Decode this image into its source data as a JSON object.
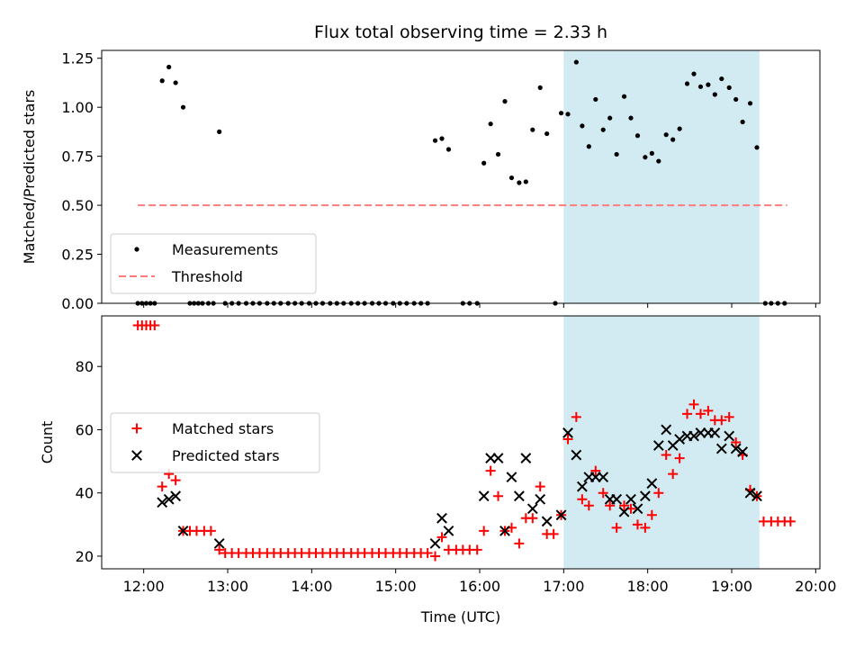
{
  "chart_data": [
    {
      "type": "scatter",
      "title": "Flux total observing time = 2.33 h",
      "ylabel": "Matched/Predicted stars",
      "xlabel": "",
      "xlim": [
        11.5,
        20.05
      ],
      "ylim": [
        0,
        1.29
      ],
      "yticks": [
        0.0,
        0.25,
        0.5,
        0.75,
        1.0,
        1.25
      ],
      "ytick_labels": [
        "0.00",
        "0.25",
        "0.50",
        "0.75",
        "1.00",
        "1.25"
      ],
      "shaded_interval": [
        17.0,
        19.33
      ],
      "shaded_color": "#add8e6",
      "legend_position": "lower-left",
      "series": [
        {
          "name": "Measurements",
          "marker": "dot",
          "color": "#000000",
          "points": [
            [
              11.93,
              0
            ],
            [
              11.98,
              0
            ],
            [
              12.03,
              0
            ],
            [
              12.08,
              0
            ],
            [
              12.13,
              0
            ],
            [
              12.22,
              1.135
            ],
            [
              12.3,
              1.205
            ],
            [
              12.38,
              1.125
            ],
            [
              12.47,
              1.0
            ],
            [
              12.55,
              0
            ],
            [
              12.6,
              0
            ],
            [
              12.65,
              0
            ],
            [
              12.7,
              0
            ],
            [
              12.77,
              0
            ],
            [
              12.83,
              0
            ],
            [
              12.9,
              0.875
            ],
            [
              12.97,
              0
            ],
            [
              13.05,
              0
            ],
            [
              13.13,
              0
            ],
            [
              13.22,
              0
            ],
            [
              13.3,
              0
            ],
            [
              13.38,
              0
            ],
            [
              13.47,
              0
            ],
            [
              13.55,
              0
            ],
            [
              13.63,
              0
            ],
            [
              13.72,
              0
            ],
            [
              13.8,
              0
            ],
            [
              13.88,
              0
            ],
            [
              13.97,
              0
            ],
            [
              14.05,
              0
            ],
            [
              14.13,
              0
            ],
            [
              14.22,
              0
            ],
            [
              14.3,
              0
            ],
            [
              14.38,
              0
            ],
            [
              14.47,
              0
            ],
            [
              14.55,
              0
            ],
            [
              14.63,
              0
            ],
            [
              14.72,
              0
            ],
            [
              14.8,
              0
            ],
            [
              14.88,
              0
            ],
            [
              14.97,
              0
            ],
            [
              15.05,
              0
            ],
            [
              15.13,
              0
            ],
            [
              15.22,
              0
            ],
            [
              15.3,
              0
            ],
            [
              15.38,
              0
            ],
            [
              15.47,
              0.83
            ],
            [
              15.55,
              0.84
            ],
            [
              15.63,
              0.785
            ],
            [
              15.8,
              0
            ],
            [
              15.88,
              0
            ],
            [
              15.97,
              0
            ],
            [
              16.05,
              0.715
            ],
            [
              16.13,
              0.915
            ],
            [
              16.22,
              0.76
            ],
            [
              16.3,
              1.03
            ],
            [
              16.38,
              0.64
            ],
            [
              16.47,
              0.615
            ],
            [
              16.55,
              0.62
            ],
            [
              16.63,
              0.885
            ],
            [
              16.72,
              1.1
            ],
            [
              16.8,
              0.865
            ],
            [
              16.9,
              0
            ],
            [
              16.97,
              0.97
            ],
            [
              17.05,
              0.965
            ],
            [
              17.15,
              1.23
            ],
            [
              17.22,
              0.905
            ],
            [
              17.3,
              0.8
            ],
            [
              17.38,
              1.04
            ],
            [
              17.47,
              0.885
            ],
            [
              17.55,
              0.945
            ],
            [
              17.63,
              0.76
            ],
            [
              17.72,
              1.055
            ],
            [
              17.8,
              0.945
            ],
            [
              17.88,
              0.855
            ],
            [
              17.97,
              0.745
            ],
            [
              18.05,
              0.765
            ],
            [
              18.13,
              0.725
            ],
            [
              18.22,
              0.86
            ],
            [
              18.3,
              0.835
            ],
            [
              18.38,
              0.89
            ],
            [
              18.47,
              1.12
            ],
            [
              18.55,
              1.17
            ],
            [
              18.63,
              1.105
            ],
            [
              18.72,
              1.115
            ],
            [
              18.8,
              1.065
            ],
            [
              18.88,
              1.145
            ],
            [
              18.97,
              1.1
            ],
            [
              19.05,
              1.04
            ],
            [
              19.13,
              0.925
            ],
            [
              19.22,
              1.02
            ],
            [
              19.3,
              0.795
            ],
            [
              19.4,
              0
            ],
            [
              19.47,
              0
            ],
            [
              19.55,
              0
            ],
            [
              19.63,
              0
            ]
          ]
        },
        {
          "name": "Threshold",
          "marker": "dashed-line",
          "color": "#ff7b7b",
          "points": [
            [
              11.93,
              0.5
            ],
            [
              19.66,
              0.5
            ]
          ]
        }
      ]
    },
    {
      "type": "scatter",
      "title": "",
      "ylabel": "Count",
      "xlabel": "Time (UTC)",
      "xlim": [
        11.5,
        20.05
      ],
      "ylim": [
        16,
        96
      ],
      "yticks": [
        20,
        40,
        60,
        80
      ],
      "ytick_labels": [
        "20",
        "40",
        "60",
        "80"
      ],
      "xticks": [
        12,
        13,
        14,
        15,
        16,
        17,
        18,
        19,
        20
      ],
      "xtick_labels": [
        "12:00",
        "13:00",
        "14:00",
        "15:00",
        "16:00",
        "17:00",
        "18:00",
        "19:00",
        "20:00"
      ],
      "shaded_interval": [
        17.0,
        19.33
      ],
      "shaded_color": "#add8e6",
      "legend_position": "center-left",
      "series": [
        {
          "name": "Matched stars",
          "marker": "plus",
          "color": "#ff0000",
          "points": [
            [
              11.93,
              93
            ],
            [
              11.98,
              93
            ],
            [
              12.03,
              93
            ],
            [
              12.08,
              93
            ],
            [
              12.13,
              93
            ],
            [
              12.22,
              42
            ],
            [
              12.3,
              46
            ],
            [
              12.38,
              44
            ],
            [
              12.47,
              28
            ],
            [
              12.55,
              28
            ],
            [
              12.63,
              28
            ],
            [
              12.72,
              28
            ],
            [
              12.8,
              28
            ],
            [
              12.9,
              22
            ],
            [
              12.97,
              21
            ],
            [
              13.05,
              21
            ],
            [
              13.13,
              21
            ],
            [
              13.22,
              21
            ],
            [
              13.3,
              21
            ],
            [
              13.38,
              21
            ],
            [
              13.47,
              21
            ],
            [
              13.55,
              21
            ],
            [
              13.63,
              21
            ],
            [
              13.72,
              21
            ],
            [
              13.8,
              21
            ],
            [
              13.88,
              21
            ],
            [
              13.97,
              21
            ],
            [
              14.05,
              21
            ],
            [
              14.13,
              21
            ],
            [
              14.22,
              21
            ],
            [
              14.3,
              21
            ],
            [
              14.38,
              21
            ],
            [
              14.47,
              21
            ],
            [
              14.55,
              21
            ],
            [
              14.63,
              21
            ],
            [
              14.72,
              21
            ],
            [
              14.8,
              21
            ],
            [
              14.88,
              21
            ],
            [
              14.97,
              21
            ],
            [
              15.05,
              21
            ],
            [
              15.13,
              21
            ],
            [
              15.22,
              21
            ],
            [
              15.3,
              21
            ],
            [
              15.38,
              21
            ],
            [
              15.47,
              20
            ],
            [
              15.55,
              26
            ],
            [
              15.63,
              22
            ],
            [
              15.72,
              22
            ],
            [
              15.8,
              22
            ],
            [
              15.88,
              22
            ],
            [
              15.97,
              22
            ],
            [
              16.05,
              28
            ],
            [
              16.13,
              47
            ],
            [
              16.22,
              39
            ],
            [
              16.3,
              28
            ],
            [
              16.38,
              29
            ],
            [
              16.47,
              24
            ],
            [
              16.55,
              32
            ],
            [
              16.63,
              32
            ],
            [
              16.72,
              42
            ],
            [
              16.8,
              27
            ],
            [
              16.88,
              27
            ],
            [
              16.97,
              33
            ],
            [
              17.05,
              57
            ],
            [
              17.15,
              64
            ],
            [
              17.22,
              38
            ],
            [
              17.3,
              36
            ],
            [
              17.38,
              47
            ],
            [
              17.47,
              40
            ],
            [
              17.55,
              36
            ],
            [
              17.63,
              29
            ],
            [
              17.72,
              36
            ],
            [
              17.8,
              35
            ],
            [
              17.88,
              30
            ],
            [
              17.97,
              29
            ],
            [
              18.05,
              33
            ],
            [
              18.13,
              40
            ],
            [
              18.22,
              52
            ],
            [
              18.3,
              46
            ],
            [
              18.38,
              51
            ],
            [
              18.47,
              65
            ],
            [
              18.55,
              68
            ],
            [
              18.63,
              65
            ],
            [
              18.72,
              66
            ],
            [
              18.8,
              63
            ],
            [
              18.88,
              63
            ],
            [
              18.97,
              64
            ],
            [
              19.05,
              56
            ],
            [
              19.13,
              52
            ],
            [
              19.22,
              41
            ],
            [
              19.3,
              39
            ],
            [
              19.38,
              31
            ],
            [
              19.47,
              31
            ],
            [
              19.55,
              31
            ],
            [
              19.63,
              31
            ],
            [
              19.7,
              31
            ]
          ]
        },
        {
          "name": "Predicted stars",
          "marker": "x",
          "color": "#000000",
          "points": [
            [
              12.22,
              37
            ],
            [
              12.3,
              38
            ],
            [
              12.38,
              39
            ],
            [
              12.47,
              28
            ],
            [
              12.9,
              24
            ],
            [
              15.47,
              24
            ],
            [
              15.55,
              32
            ],
            [
              15.63,
              28
            ],
            [
              16.05,
              39
            ],
            [
              16.13,
              51
            ],
            [
              16.22,
              51
            ],
            [
              16.3,
              28
            ],
            [
              16.38,
              45
            ],
            [
              16.47,
              39
            ],
            [
              16.55,
              51
            ],
            [
              16.63,
              35
            ],
            [
              16.72,
              38
            ],
            [
              16.8,
              31
            ],
            [
              16.97,
              33
            ],
            [
              17.05,
              59
            ],
            [
              17.15,
              52
            ],
            [
              17.22,
              42
            ],
            [
              17.3,
              45
            ],
            [
              17.38,
              45
            ],
            [
              17.47,
              45
            ],
            [
              17.55,
              38
            ],
            [
              17.63,
              38
            ],
            [
              17.72,
              34
            ],
            [
              17.8,
              38
            ],
            [
              17.88,
              35
            ],
            [
              17.97,
              39
            ],
            [
              18.05,
              43
            ],
            [
              18.13,
              55
            ],
            [
              18.22,
              60
            ],
            [
              18.3,
              55
            ],
            [
              18.38,
              57
            ],
            [
              18.47,
              58
            ],
            [
              18.55,
              58
            ],
            [
              18.63,
              59
            ],
            [
              18.72,
              59
            ],
            [
              18.8,
              59
            ],
            [
              18.88,
              54
            ],
            [
              18.97,
              58
            ],
            [
              19.05,
              54
            ],
            [
              19.13,
              53
            ],
            [
              19.22,
              40
            ],
            [
              19.3,
              39
            ]
          ]
        }
      ]
    }
  ]
}
